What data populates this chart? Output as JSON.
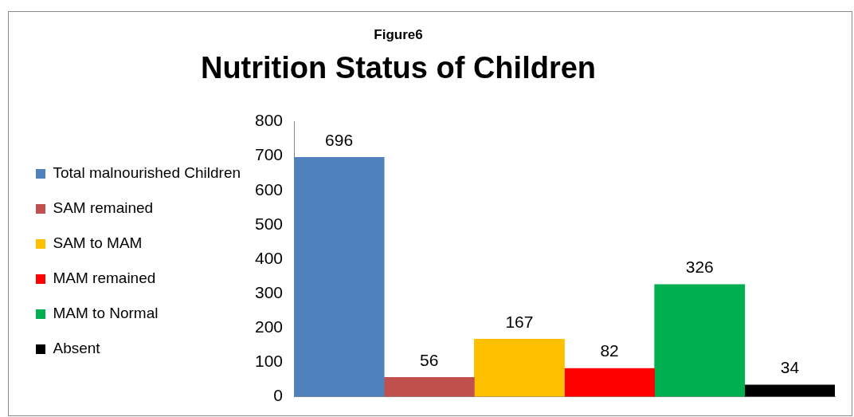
{
  "chart_data": {
    "type": "bar",
    "title": "Nutrition Status of Children",
    "subtitle": "Figure6",
    "categories": [
      null
    ],
    "series": [
      {
        "name": "Total malnourished Children",
        "color": "#4f81bd",
        "values": [
          696
        ]
      },
      {
        "name": "SAM remained",
        "color": "#c0504d",
        "values": [
          56
        ]
      },
      {
        "name": "SAM to MAM",
        "color": "#ffc000",
        "values": [
          167
        ]
      },
      {
        "name": "MAM remained",
        "color": "#ff0000",
        "values": [
          82
        ]
      },
      {
        "name": "MAM to Normal",
        "color": "#00b050",
        "values": [
          326
        ]
      },
      {
        "name": "Absent",
        "color": "#000000",
        "values": [
          34
        ]
      }
    ],
    "ylim": [
      0,
      800
    ],
    "yticks": [
      0,
      100,
      200,
      300,
      400,
      500,
      600,
      700,
      800
    ],
    "grid": false,
    "legend": "left",
    "data_labels": true
  }
}
